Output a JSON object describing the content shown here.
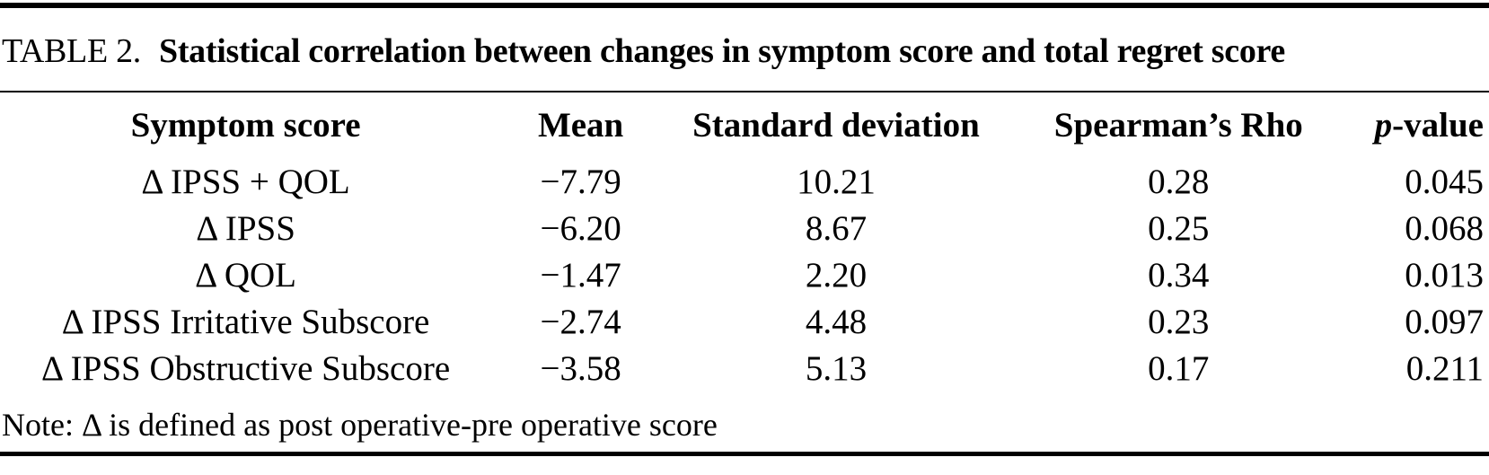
{
  "caption": {
    "label": "TABLE 2.",
    "title": "Statistical correlation between changes in symptom score and total regret score"
  },
  "table": {
    "columns": [
      "Symptom score",
      "Mean",
      "Standard deviation",
      "Spearman’s Rho",
      "p-value"
    ],
    "p_value_header": {
      "italic": "p",
      "rest": "-value"
    },
    "rows": [
      {
        "cells": [
          "Δ IPSS + QOL",
          "−7.79",
          "10.21",
          "0.28",
          "0.045"
        ]
      },
      {
        "cells": [
          "Δ IPSS",
          "−6.20",
          "8.67",
          "0.25",
          "0.068"
        ]
      },
      {
        "cells": [
          "Δ QOL",
          "−1.47",
          "2.20",
          "0.34",
          "0.013"
        ]
      },
      {
        "cells": [
          "Δ IPSS Irritative Subscore",
          "−2.74",
          "4.48",
          "0.23",
          "0.097"
        ]
      },
      {
        "cells": [
          "Δ IPSS Obstructive Subscore",
          "−3.58",
          "5.13",
          "0.17",
          "0.211"
        ]
      }
    ]
  },
  "note": {
    "text": "Note: Δ is defined as post operative-pre operative score"
  }
}
